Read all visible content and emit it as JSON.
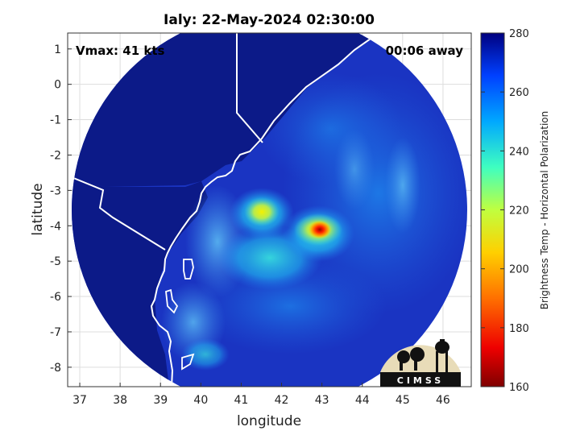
{
  "chart_data": {
    "type": "heatmap",
    "title": "Ialy: 22-May-2024 02:30:00",
    "xlabel": "longitude",
    "ylabel": "latitude",
    "xlim": [
      36.7,
      46.7
    ],
    "ylim": [
      -8.55,
      1.45
    ],
    "x_ticks": [
      37,
      38,
      39,
      40,
      41,
      42,
      43,
      44,
      45,
      46
    ],
    "y_ticks": [
      1,
      0,
      -1,
      -2,
      -3,
      -4,
      -5,
      -6,
      -7,
      -8
    ],
    "grid": true,
    "annotations": {
      "vmax": "Vmax: 41 kts",
      "time_away": "00:06 away"
    },
    "colorbar": {
      "label": "Brightness Temp - Horizontal Polarization",
      "range": [
        160,
        280
      ],
      "ticks": [
        280,
        260,
        240,
        220,
        200,
        180,
        160
      ]
    },
    "logo": "CIMSS",
    "swath": {
      "center": [
        41.7,
        -3.55
      ],
      "radius_deg": 4.9
    },
    "features": [
      {
        "name": "eye-wall-core",
        "lon": 43.05,
        "lat": -4.1,
        "temp": 172
      },
      {
        "name": "rain-band-west",
        "lon": 41.7,
        "lat": -3.65,
        "temp": 218
      },
      {
        "name": "rain-band-south",
        "lon": 42.3,
        "lat": -4.8,
        "temp": 238
      }
    ],
    "colors": {
      "background_ocean": "#1a2fb8",
      "land_dark": "#0b1a86",
      "coastline": "#ffffff"
    }
  }
}
